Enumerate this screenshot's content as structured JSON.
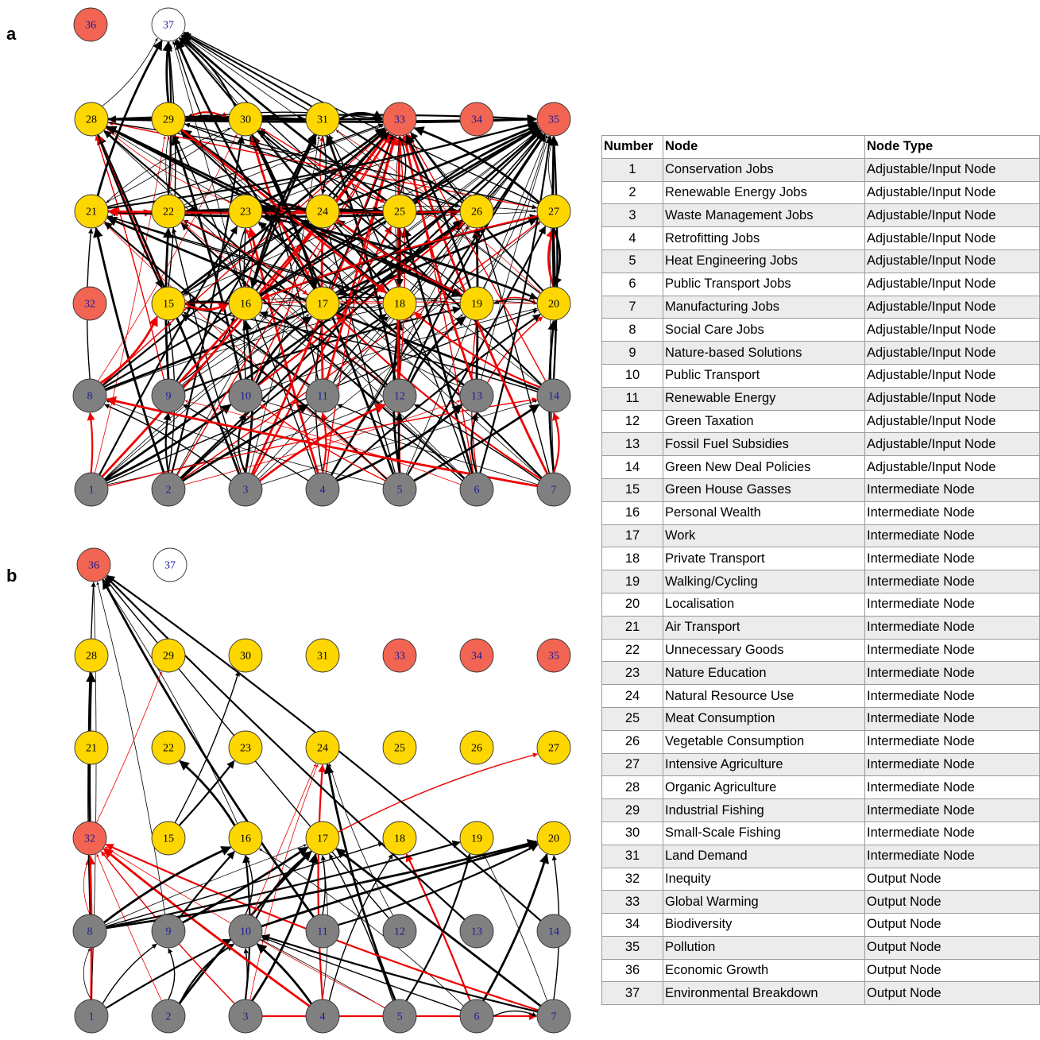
{
  "panels": [
    {
      "label": "a"
    },
    {
      "label": "b"
    }
  ],
  "colors": {
    "input_node": "#808080",
    "intermediate_node": "#FFD700",
    "output_node": "#F26552",
    "unused_output_node": "#FFFFFF",
    "node_number_on_grey": "#1a1a99",
    "node_number_on_color": "#1a1a99",
    "edge_positive": "#000000",
    "edge_negative": "#EE0000"
  },
  "node_numbers": [
    "1",
    "2",
    "3",
    "4",
    "5",
    "6",
    "7",
    "8",
    "9",
    "10",
    "11",
    "12",
    "13",
    "14",
    "15",
    "16",
    "17",
    "18",
    "19",
    "20",
    "21",
    "22",
    "23",
    "24",
    "25",
    "26",
    "27",
    "28",
    "29",
    "30",
    "31",
    "32",
    "33",
    "34",
    "35",
    "36",
    "37"
  ],
  "graph_b_edges": [
    {
      "from": 1,
      "to": 8,
      "sign": "positive"
    },
    {
      "from": 1,
      "to": 9,
      "sign": "positive"
    },
    {
      "from": 1,
      "to": 10,
      "sign": "positive"
    },
    {
      "from": 1,
      "to": 32,
      "sign": "negative"
    },
    {
      "from": 1,
      "to": 36,
      "sign": "positive"
    },
    {
      "from": 2,
      "to": 9,
      "sign": "positive"
    },
    {
      "from": 2,
      "to": 10,
      "sign": "positive"
    },
    {
      "from": 2,
      "to": 17,
      "sign": "positive"
    },
    {
      "from": 2,
      "to": 32,
      "sign": "negative"
    },
    {
      "from": 3,
      "to": 10,
      "sign": "positive"
    },
    {
      "from": 3,
      "to": 16,
      "sign": "positive"
    },
    {
      "from": 3,
      "to": 17,
      "sign": "positive"
    },
    {
      "from": 3,
      "to": 24,
      "sign": "negative"
    },
    {
      "from": 3,
      "to": 32,
      "sign": "negative"
    },
    {
      "from": 3,
      "to": 7,
      "sign": "negative"
    },
    {
      "from": 4,
      "to": 10,
      "sign": "positive"
    },
    {
      "from": 4,
      "to": 17,
      "sign": "positive"
    },
    {
      "from": 4,
      "to": 18,
      "sign": "positive"
    },
    {
      "from": 4,
      "to": 24,
      "sign": "negative"
    },
    {
      "from": 4,
      "to": 32,
      "sign": "negative"
    },
    {
      "from": 5,
      "to": 10,
      "sign": "positive"
    },
    {
      "from": 5,
      "to": 17,
      "sign": "positive"
    },
    {
      "from": 5,
      "to": 19,
      "sign": "positive"
    },
    {
      "from": 5,
      "to": 24,
      "sign": "positive"
    },
    {
      "from": 5,
      "to": 32,
      "sign": "negative"
    },
    {
      "from": 6,
      "to": 10,
      "sign": "positive"
    },
    {
      "from": 6,
      "to": 18,
      "sign": "negative"
    },
    {
      "from": 6,
      "to": 20,
      "sign": "positive"
    },
    {
      "from": 6,
      "to": 16,
      "sign": "positive"
    },
    {
      "from": 6,
      "to": 7,
      "sign": "positive"
    },
    {
      "from": 7,
      "to": 10,
      "sign": "positive"
    },
    {
      "from": 7,
      "to": 17,
      "sign": "positive"
    },
    {
      "from": 7,
      "to": 19,
      "sign": "positive"
    },
    {
      "from": 7,
      "to": 20,
      "sign": "positive"
    },
    {
      "from": 7,
      "to": 32,
      "sign": "negative"
    },
    {
      "from": 8,
      "to": 16,
      "sign": "positive"
    },
    {
      "from": 8,
      "to": 17,
      "sign": "positive"
    },
    {
      "from": 8,
      "to": 18,
      "sign": "positive"
    },
    {
      "from": 8,
      "to": 19,
      "sign": "positive"
    },
    {
      "from": 8,
      "to": 20,
      "sign": "positive"
    },
    {
      "from": 8,
      "to": 32,
      "sign": "negative"
    },
    {
      "from": 8,
      "to": 36,
      "sign": "positive"
    },
    {
      "from": 9,
      "to": 16,
      "sign": "positive"
    },
    {
      "from": 9,
      "to": 17,
      "sign": "positive"
    },
    {
      "from": 9,
      "to": 36,
      "sign": "positive"
    },
    {
      "from": 10,
      "to": 16,
      "sign": "positive"
    },
    {
      "from": 10,
      "to": 17,
      "sign": "positive"
    },
    {
      "from": 10,
      "to": 20,
      "sign": "positive"
    },
    {
      "from": 10,
      "to": 24,
      "sign": "negative"
    },
    {
      "from": 11,
      "to": 17,
      "sign": "positive"
    },
    {
      "from": 11,
      "to": 20,
      "sign": "positive"
    },
    {
      "from": 11,
      "to": 36,
      "sign": "positive"
    },
    {
      "from": 12,
      "to": 24,
      "sign": "positive"
    },
    {
      "from": 12,
      "to": 36,
      "sign": "positive"
    },
    {
      "from": 15,
      "to": 23,
      "sign": "positive"
    },
    {
      "from": 16,
      "to": 22,
      "sign": "positive"
    },
    {
      "from": 16,
      "to": 36,
      "sign": "positive"
    },
    {
      "from": 17,
      "to": 27,
      "sign": "negative"
    },
    {
      "from": 13,
      "to": 36,
      "sign": "positive"
    },
    {
      "from": 32,
      "to": 28,
      "sign": "positive"
    },
    {
      "from": 32,
      "to": 29,
      "sign": "negative"
    },
    {
      "from": 15,
      "to": 30,
      "sign": "positive"
    },
    {
      "from": 14,
      "to": 36,
      "sign": "positive"
    }
  ],
  "table": {
    "headers": [
      "Number",
      "Node",
      "Node Type"
    ],
    "rows": [
      [
        "1",
        "Conservation Jobs",
        "Adjustable/Input Node"
      ],
      [
        "2",
        "Renewable Energy Jobs",
        "Adjustable/Input Node"
      ],
      [
        "3",
        "Waste Management Jobs",
        "Adjustable/Input Node"
      ],
      [
        "4",
        "Retrofitting Jobs",
        "Adjustable/Input Node"
      ],
      [
        "5",
        "Heat Engineering Jobs",
        "Adjustable/Input Node"
      ],
      [
        "6",
        "Public Transport Jobs",
        "Adjustable/Input Node"
      ],
      [
        "7",
        "Manufacturing Jobs",
        "Adjustable/Input Node"
      ],
      [
        "8",
        "Social Care Jobs",
        "Adjustable/Input Node"
      ],
      [
        "9",
        "Nature-based Solutions",
        "Adjustable/Input Node"
      ],
      [
        "10",
        "Public Transport",
        "Adjustable/Input Node"
      ],
      [
        "11",
        "Renewable Energy",
        "Adjustable/Input Node"
      ],
      [
        "12",
        "Green Taxation",
        "Adjustable/Input Node"
      ],
      [
        "13",
        "Fossil Fuel Subsidies",
        "Adjustable/Input Node"
      ],
      [
        "14",
        "Green New Deal Policies",
        "Adjustable/Input Node"
      ],
      [
        "15",
        "Green House Gasses",
        "Intermediate Node"
      ],
      [
        "16",
        "Personal Wealth",
        "Intermediate Node"
      ],
      [
        "17",
        "Work",
        "Intermediate Node"
      ],
      [
        "18",
        "Private Transport",
        "Intermediate Node"
      ],
      [
        "19",
        "Walking/Cycling",
        "Intermediate Node"
      ],
      [
        "20",
        "Localisation",
        "Intermediate Node"
      ],
      [
        "21",
        "Air Transport",
        "Intermediate Node"
      ],
      [
        "22",
        "Unnecessary Goods",
        "Intermediate Node"
      ],
      [
        "23",
        "Nature Education",
        "Intermediate Node"
      ],
      [
        "24",
        "Natural Resource Use",
        "Intermediate Node"
      ],
      [
        "25",
        "Meat Consumption",
        "Intermediate Node"
      ],
      [
        "26",
        "Vegetable Consumption",
        "Intermediate Node"
      ],
      [
        "27",
        "Intensive Agriculture",
        "Intermediate Node"
      ],
      [
        "28",
        "Organic Agriculture",
        "Intermediate Node"
      ],
      [
        "29",
        "Industrial Fishing",
        "Intermediate Node"
      ],
      [
        "30",
        "Small-Scale Fishing",
        "Intermediate Node"
      ],
      [
        "31",
        "Land Demand",
        "Intermediate Node"
      ],
      [
        "32",
        "Inequity",
        "Output Node"
      ],
      [
        "33",
        "Global Warming",
        "Output Node"
      ],
      [
        "34",
        "Biodiversity",
        "Output Node"
      ],
      [
        "35",
        "Pollution",
        "Output Node"
      ],
      [
        "36",
        "Economic Growth",
        "Output Node"
      ],
      [
        "37",
        "Environmental Breakdown",
        "Output Node"
      ]
    ]
  }
}
